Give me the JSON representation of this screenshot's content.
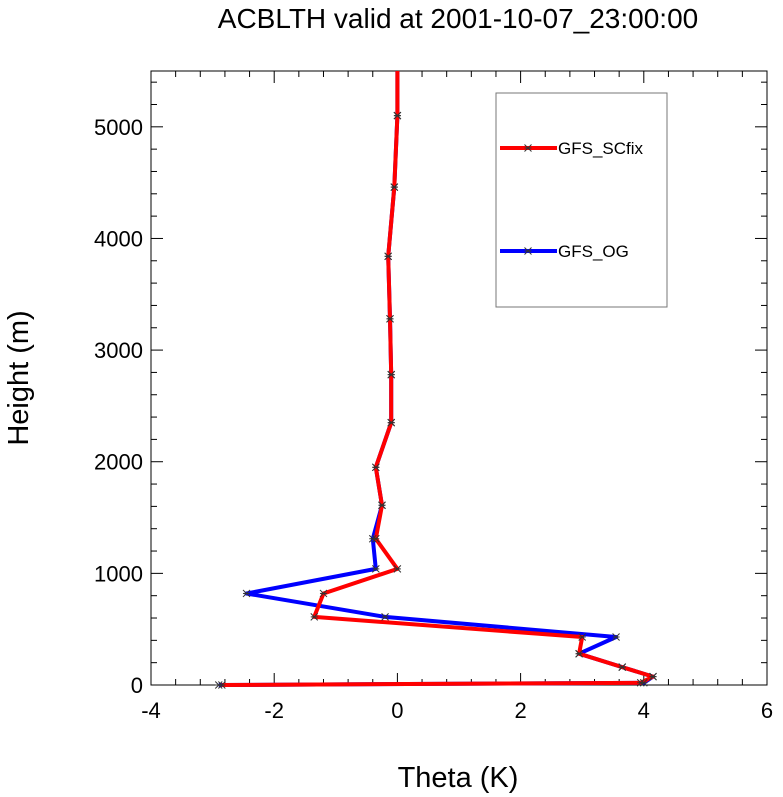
{
  "chart_data": {
    "type": "line",
    "title": "ACBLTH valid at 2001-10-07_23:00:00",
    "xlabel": "Theta (K)",
    "ylabel": "Height (m)",
    "xlim": [
      -4,
      6
    ],
    "ylim": [
      0,
      5500
    ],
    "x_ticks": [
      -4,
      -2,
      0,
      2,
      4,
      6
    ],
    "y_ticks": [
      0,
      1000,
      2000,
      3000,
      4000,
      5000
    ],
    "x_tick_labels": [
      "-4",
      "-2",
      "0",
      "2",
      "4",
      "6"
    ],
    "y_tick_labels": [
      "0",
      "1000",
      "2000",
      "3000",
      "4000",
      "5000"
    ],
    "legend_position": "top-right",
    "series": [
      {
        "name": "GFS_OG",
        "color": "#0000ff",
        "points": [
          [
            -2.9,
            0
          ],
          [
            4.0,
            20
          ],
          [
            4.15,
            75
          ],
          [
            3.65,
            160
          ],
          [
            2.95,
            280
          ],
          [
            3.55,
            430
          ],
          [
            -0.2,
            610
          ],
          [
            -2.45,
            820
          ],
          [
            -0.35,
            1040
          ],
          [
            -0.4,
            1310
          ],
          [
            -0.25,
            1610
          ],
          [
            -0.35,
            1950
          ],
          [
            -0.1,
            2350
          ],
          [
            -0.1,
            2780
          ],
          [
            -0.12,
            3280
          ],
          [
            -0.15,
            3840
          ],
          [
            -0.05,
            4460
          ],
          [
            0,
            5100
          ],
          [
            0,
            5500
          ]
        ]
      },
      {
        "name": "GFS_SCfix",
        "color": "#ff0000",
        "points": [
          [
            -2.85,
            0
          ],
          [
            3.95,
            20
          ],
          [
            4.15,
            75
          ],
          [
            3.65,
            160
          ],
          [
            2.95,
            280
          ],
          [
            3.0,
            430
          ],
          [
            -1.35,
            610
          ],
          [
            -1.2,
            820
          ],
          [
            0,
            1040
          ],
          [
            -0.35,
            1310
          ],
          [
            -0.25,
            1610
          ],
          [
            -0.35,
            1950
          ],
          [
            -0.1,
            2350
          ],
          [
            -0.1,
            2780
          ],
          [
            -0.12,
            3280
          ],
          [
            -0.15,
            3840
          ],
          [
            -0.05,
            4460
          ],
          [
            0,
            5100
          ],
          [
            0,
            5500
          ]
        ]
      }
    ]
  }
}
